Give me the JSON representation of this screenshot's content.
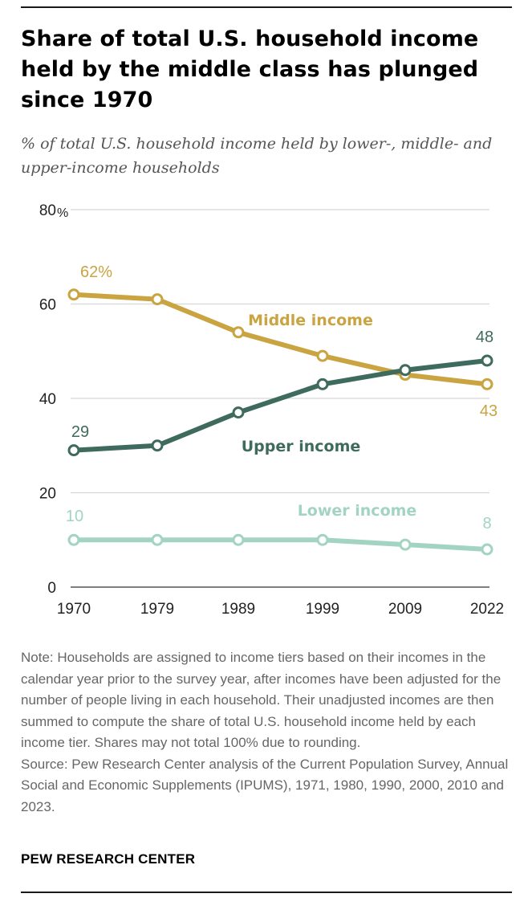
{
  "title": "Share of total U.S. household income held by the middle class has plunged since 1970",
  "subtitle": "% of total U.S. household income held by lower-, middle- and upper-income households",
  "note": "Note: Households are assigned to income tiers based on their incomes in the calendar year prior to the survey year, after incomes have been adjusted for the number of people living in each household. Their unadjusted incomes are then summed to compute the share of total U.S. household income held by each income tier. Shares may not total 100% due to rounding.",
  "source": "Source: Pew Research Center analysis of the Current Population Survey, Annual Social and Economic Supplements (IPUMS), 1971, 1980, 1990, 2000, 2010 and 2023.",
  "org": "PEW RESEARCH CENTER",
  "chart_data": {
    "type": "line",
    "x": [
      "1970",
      "1979",
      "1989",
      "1999",
      "2009",
      "2022"
    ],
    "ylim": [
      0,
      80
    ],
    "yticks": [
      "0",
      "20",
      "40",
      "60",
      "80"
    ],
    "y_unit": "%",
    "grid": true,
    "series": [
      {
        "name": "Middle income",
        "color": "#c9a441",
        "values": [
          62,
          61,
          54,
          49,
          45,
          43
        ],
        "start_label": "62%",
        "end_label": "43"
      },
      {
        "name": "Upper income",
        "color": "#3e6b5e",
        "values": [
          29,
          30,
          37,
          43,
          46,
          48
        ],
        "start_label": "29",
        "end_label": "48"
      },
      {
        "name": "Lower income",
        "color": "#a3d4c2",
        "values": [
          10,
          10,
          10,
          10,
          9,
          8
        ],
        "start_label": "10",
        "end_label": "8"
      }
    ]
  }
}
